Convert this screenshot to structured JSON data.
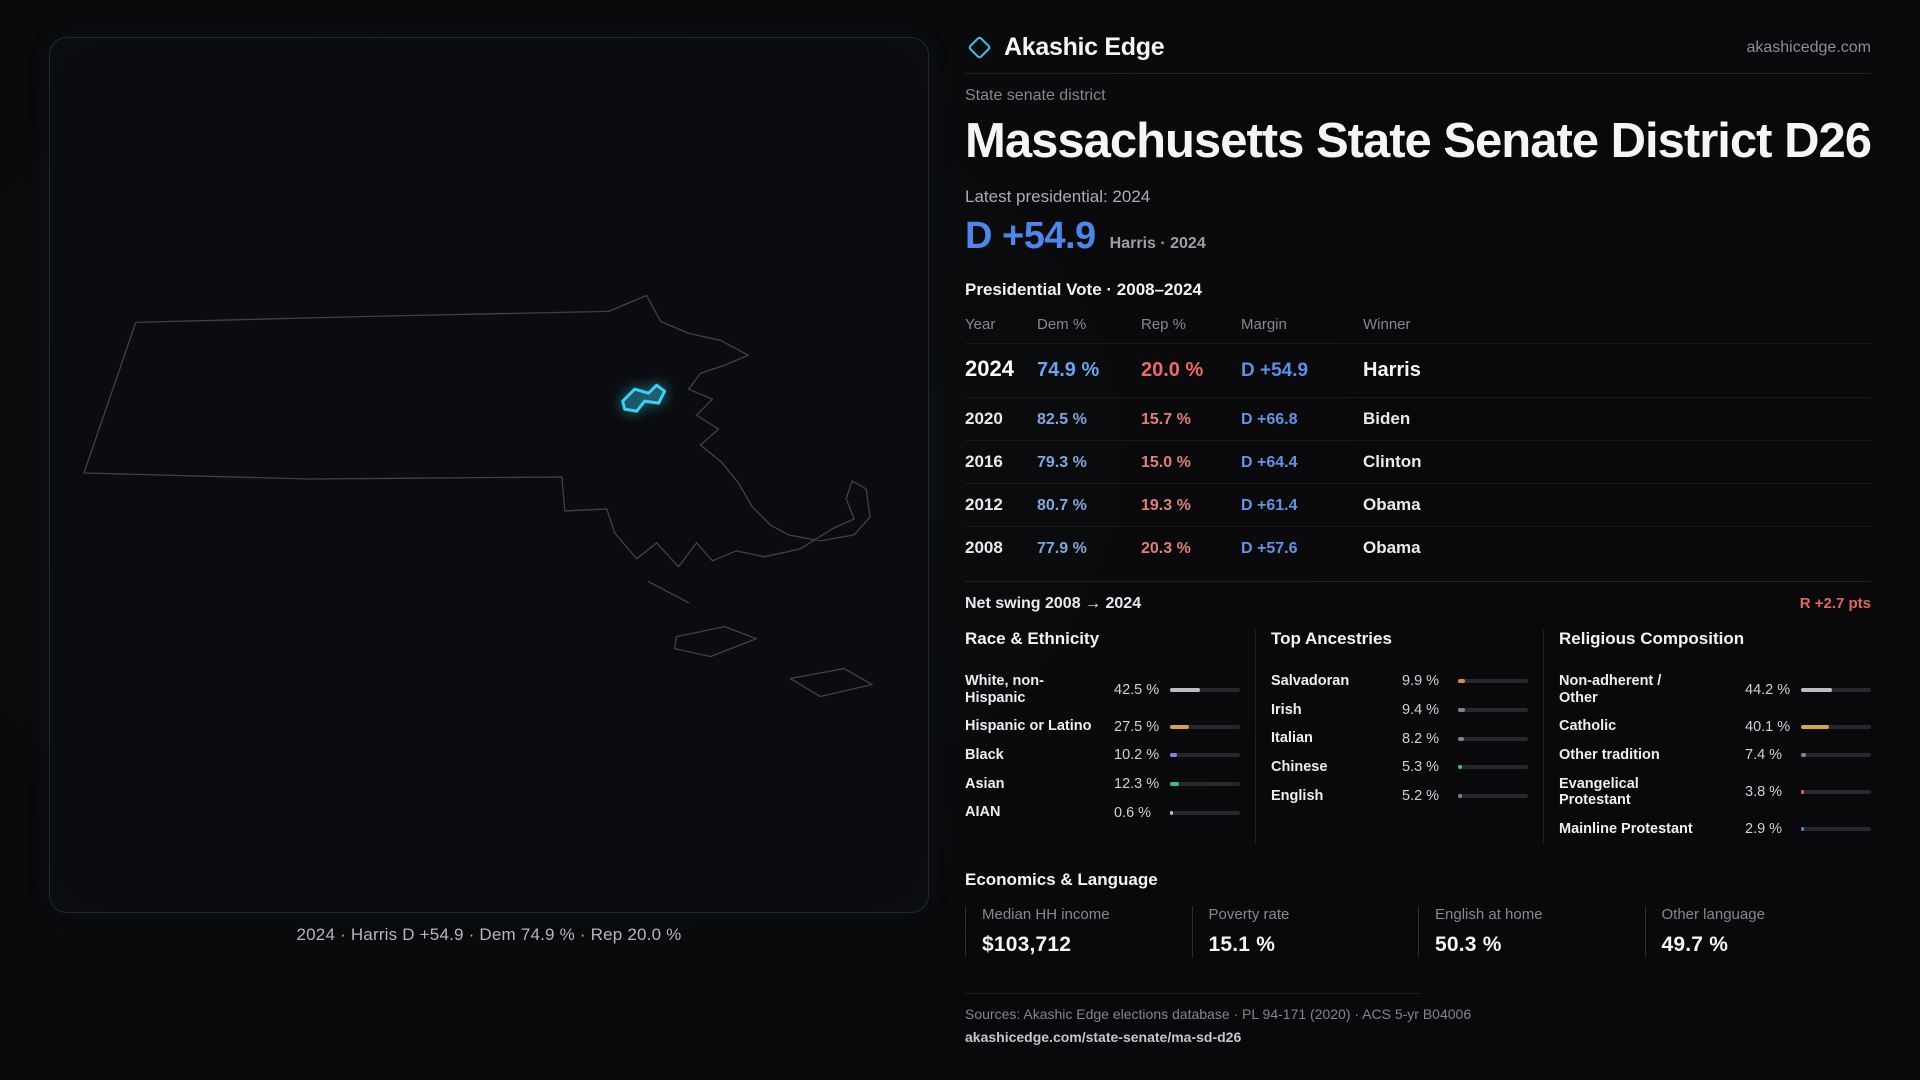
{
  "header": {
    "brand": "Akashic Edge",
    "site": "akashicedge.com"
  },
  "map": {
    "caption": "2024 · Harris D +54.9 · Dem 74.9 % · Rep 20.0 %",
    "district_color": "#3ad2f2",
    "outline_color": "#3e4248"
  },
  "profile": {
    "kicker": "State senate district",
    "title": "Massachusetts State Senate District D26",
    "latest": "Latest presidential: 2024",
    "margin": "D +54.9",
    "margin_sub": "Harris · 2024"
  },
  "table": {
    "title": "Presidential Vote · 2008–2024",
    "columns": [
      "Year",
      "Dem %",
      "Rep %",
      "Margin",
      "Winner"
    ],
    "rows": [
      {
        "year": "2024",
        "dem": "74.9 %",
        "rep": "20.0 %",
        "margin": "D +54.9",
        "winner": "Harris"
      },
      {
        "year": "2020",
        "dem": "82.5 %",
        "rep": "15.7 %",
        "margin": "D +66.8",
        "winner": "Biden"
      },
      {
        "year": "2016",
        "dem": "79.3 %",
        "rep": "15.0 %",
        "margin": "D +64.4",
        "winner": "Clinton"
      },
      {
        "year": "2012",
        "dem": "80.7 %",
        "rep": "19.3 %",
        "margin": "D +61.4",
        "winner": "Obama"
      },
      {
        "year": "2008",
        "dem": "77.9 %",
        "rep": "20.3 %",
        "margin": "D +57.6",
        "winner": "Obama"
      }
    ],
    "net_swing_label": "Net swing 2008 → 2024",
    "net_swing_value": "R +2.7 pts"
  },
  "demographics": {
    "race": {
      "title": "Race & Ethnicity",
      "items": [
        {
          "label": "White, non-Hispanic",
          "value": "42.5 %",
          "pct": 42.5,
          "color": "#b9bdc6"
        },
        {
          "label": "Hispanic or Latino",
          "value": "27.5 %",
          "pct": 27.5,
          "color": "#d9a43a"
        },
        {
          "label": "Black",
          "value": "10.2 %",
          "pct": 10.2,
          "color": "#8b7fe8"
        },
        {
          "label": "Asian",
          "value": "12.3 %",
          "pct": 12.3,
          "color": "#36bf8f"
        },
        {
          "label": "AIAN",
          "value": "0.6 %",
          "pct": 0.6,
          "color": "#b9bdc6"
        }
      ]
    },
    "ancestries": {
      "title": "Top Ancestries",
      "items": [
        {
          "label": "Salvadoran",
          "value": "9.9 %",
          "pct": 9.9,
          "color": "#d98e3a"
        },
        {
          "label": "Irish",
          "value": "9.4 %",
          "pct": 9.4,
          "color": "#7d828c"
        },
        {
          "label": "Italian",
          "value": "8.2 %",
          "pct": 8.2,
          "color": "#7d828c"
        },
        {
          "label": "Chinese",
          "value": "5.3 %",
          "pct": 5.3,
          "color": "#36bf8f"
        },
        {
          "label": "English",
          "value": "5.2 %",
          "pct": 5.2,
          "color": "#7d828c"
        }
      ]
    },
    "religion": {
      "title": "Religious Composition",
      "items": [
        {
          "label": "Non-adherent / Other",
          "value": "44.2 %",
          "pct": 44.2,
          "color": "#b9bdc6"
        },
        {
          "label": "Catholic",
          "value": "40.1 %",
          "pct": 40.1,
          "color": "#d9a43a"
        },
        {
          "label": "Other tradition",
          "value": "7.4 %",
          "pct": 7.4,
          "color": "#7d828c"
        },
        {
          "label": "Evangelical Protestant",
          "value": "3.8 %",
          "pct": 3.8,
          "color": "#d8625a"
        },
        {
          "label": "Mainline Protestant",
          "value": "2.9 %",
          "pct": 2.9,
          "color": "#5a7fd8"
        }
      ]
    }
  },
  "economics": {
    "title": "Economics & Language",
    "stats": [
      {
        "label": "Median HH income",
        "value": "$103,712"
      },
      {
        "label": "Poverty rate",
        "value": "15.1 %"
      },
      {
        "label": "English at home",
        "value": "50.3 %"
      },
      {
        "label": "Other language",
        "value": "49.7 %"
      }
    ]
  },
  "footer": {
    "sources": "Sources: Akashic Edge elections database · PL 94-171 (2020) · ACS 5-yr B04006",
    "permalink": "akashicedge.com/state-senate/ma-sd-d26"
  },
  "theme": {
    "dem_blue": "#4e86ea",
    "rep_red": "#e0675c",
    "accent_cyan": "#3ad2f2"
  }
}
